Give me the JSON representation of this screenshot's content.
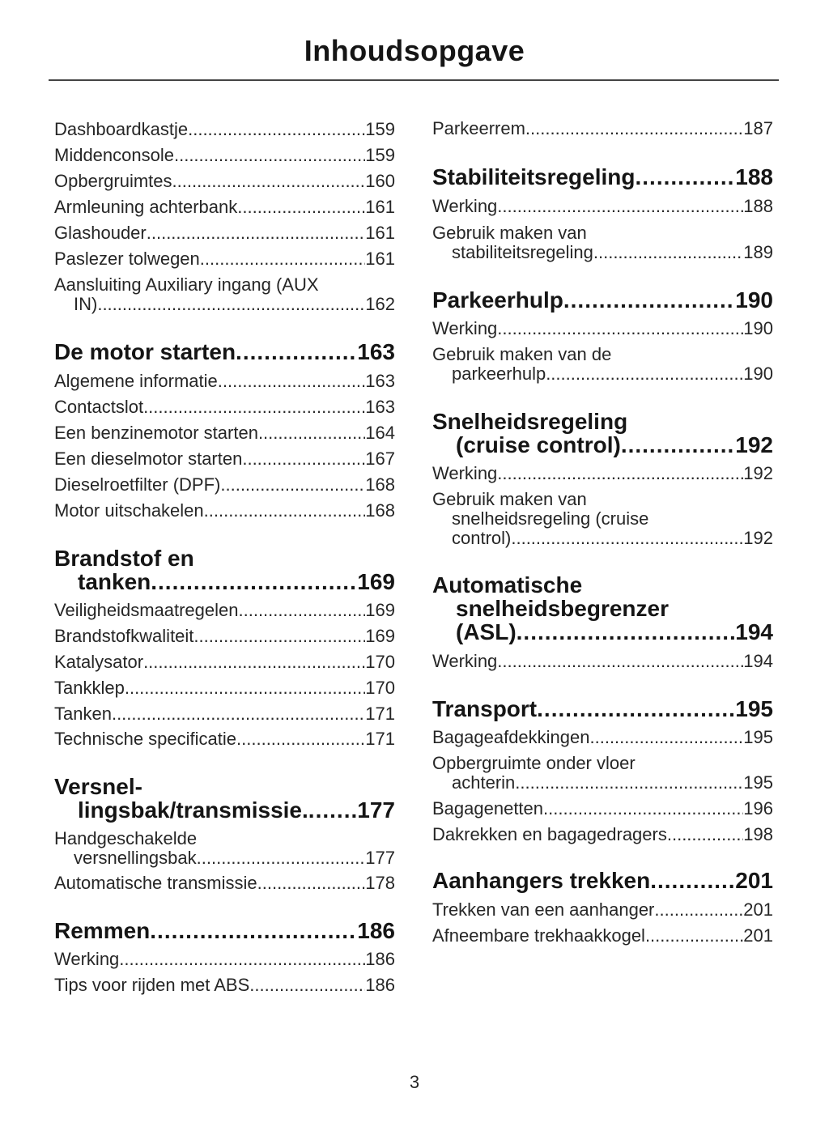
{
  "header": {
    "title": "Inhoudsopgave"
  },
  "columns": [
    {
      "entries": [
        {
          "type": "item",
          "lines": [
            "Dashboardkastje"
          ],
          "page": "159"
        },
        {
          "type": "item",
          "lines": [
            "Middenconsole"
          ],
          "page": "159"
        },
        {
          "type": "item",
          "lines": [
            "Opbergruimtes"
          ],
          "page": "160"
        },
        {
          "type": "item",
          "lines": [
            "Armleuning achterbank"
          ],
          "page": "161"
        },
        {
          "type": "item",
          "lines": [
            "Glashouder "
          ],
          "page": "161"
        },
        {
          "type": "item",
          "lines": [
            "Paslezer tolwegen "
          ],
          "page": "161"
        },
        {
          "type": "item",
          "lines": [
            "Aansluiting Auxiliary ingang (AUX",
            "IN) "
          ],
          "page": "162"
        },
        {
          "type": "head",
          "lines": [
            "De motor starten"
          ],
          "page": "163"
        },
        {
          "type": "item",
          "lines": [
            "Algemene informatie"
          ],
          "page": "163"
        },
        {
          "type": "item",
          "lines": [
            "Contactslot"
          ],
          "page": "163"
        },
        {
          "type": "item",
          "lines": [
            "Een benzinemotor starten"
          ],
          "page": "164"
        },
        {
          "type": "item",
          "lines": [
            "Een dieselmotor starten"
          ],
          "page": "167"
        },
        {
          "type": "item",
          "lines": [
            "Dieselroetfilter (DPF)"
          ],
          "page": "168"
        },
        {
          "type": "item",
          "lines": [
            "Motor uitschakelen"
          ],
          "page": "168"
        },
        {
          "type": "head",
          "lines": [
            "Brandstof en",
            "tanken"
          ],
          "page": "169"
        },
        {
          "type": "item",
          "lines": [
            "Veiligheidsmaatregelen"
          ],
          "page": "169"
        },
        {
          "type": "item",
          "lines": [
            "Brandstofkwaliteit"
          ],
          "page": "169"
        },
        {
          "type": "item",
          "lines": [
            "Katalysator"
          ],
          "page": "170"
        },
        {
          "type": "item",
          "lines": [
            "Tankklep"
          ],
          "page": "170"
        },
        {
          "type": "item",
          "lines": [
            "Tanken"
          ],
          "page": "171"
        },
        {
          "type": "item",
          "lines": [
            "Technische specificatie"
          ],
          "page": "171"
        },
        {
          "type": "head",
          "lines": [
            "Versnel-",
            "lingsbak/transmissie."
          ],
          "page": "177"
        },
        {
          "type": "item",
          "lines": [
            "Handgeschakelde",
            "versnellingsbak"
          ],
          "page": "177"
        },
        {
          "type": "item",
          "lines": [
            "Automatische transmissie"
          ],
          "page": "178"
        },
        {
          "type": "head",
          "lines": [
            "Remmen"
          ],
          "page": "186"
        },
        {
          "type": "item",
          "lines": [
            "Werking"
          ],
          "page": "186"
        },
        {
          "type": "item",
          "lines": [
            "Tips voor rijden met ABS"
          ],
          "page": "186"
        }
      ]
    },
    {
      "entries": [
        {
          "type": "item",
          "lines": [
            "Parkeerrem"
          ],
          "page": "187"
        },
        {
          "type": "head",
          "lines": [
            "Stabiliteitsregeling"
          ],
          "page": "188"
        },
        {
          "type": "item",
          "lines": [
            "Werking"
          ],
          "page": "188"
        },
        {
          "type": "item",
          "lines": [
            "Gebruik maken van",
            "stabiliteitsregeling"
          ],
          "page": "189"
        },
        {
          "type": "head",
          "lines": [
            "Parkeerhulp"
          ],
          "page": "190"
        },
        {
          "type": "item",
          "lines": [
            "Werking"
          ],
          "page": "190"
        },
        {
          "type": "item",
          "lines": [
            "Gebruik maken van de",
            "parkeerhulp"
          ],
          "page": "190"
        },
        {
          "type": "head",
          "lines": [
            "Snelheidsregeling",
            "(cruise control)"
          ],
          "page": "192"
        },
        {
          "type": "item",
          "lines": [
            "Werking"
          ],
          "page": "192"
        },
        {
          "type": "item",
          "lines": [
            "Gebruik maken van",
            "snelheidsregeling (cruise",
            "control)"
          ],
          "page": "192"
        },
        {
          "type": "head",
          "lines": [
            "Automatische",
            "snelheidsbegrenzer",
            "(ASL)"
          ],
          "page": "194"
        },
        {
          "type": "item",
          "lines": [
            "Werking"
          ],
          "page": "194"
        },
        {
          "type": "head",
          "lines": [
            "Transport"
          ],
          "page": "195"
        },
        {
          "type": "item",
          "lines": [
            "Bagageafdekkingen"
          ],
          "page": "195"
        },
        {
          "type": "item",
          "lines": [
            "Opbergruimte onder vloer",
            "achterin"
          ],
          "page": "195"
        },
        {
          "type": "item",
          "lines": [
            "Bagagenetten"
          ],
          "page": "196"
        },
        {
          "type": "item",
          "lines": [
            "Dakrekken en bagagedragers"
          ],
          "page": "198"
        },
        {
          "type": "head",
          "lines": [
            "Aanhangers trekken"
          ],
          "page": "201"
        },
        {
          "type": "item",
          "lines": [
            "Trekken van een aanhanger"
          ],
          "page": "201"
        },
        {
          "type": "item",
          "lines": [
            "Afneembare trekhaakkogel"
          ],
          "page": "201"
        }
      ]
    }
  ],
  "footer": {
    "page_number": "3"
  }
}
